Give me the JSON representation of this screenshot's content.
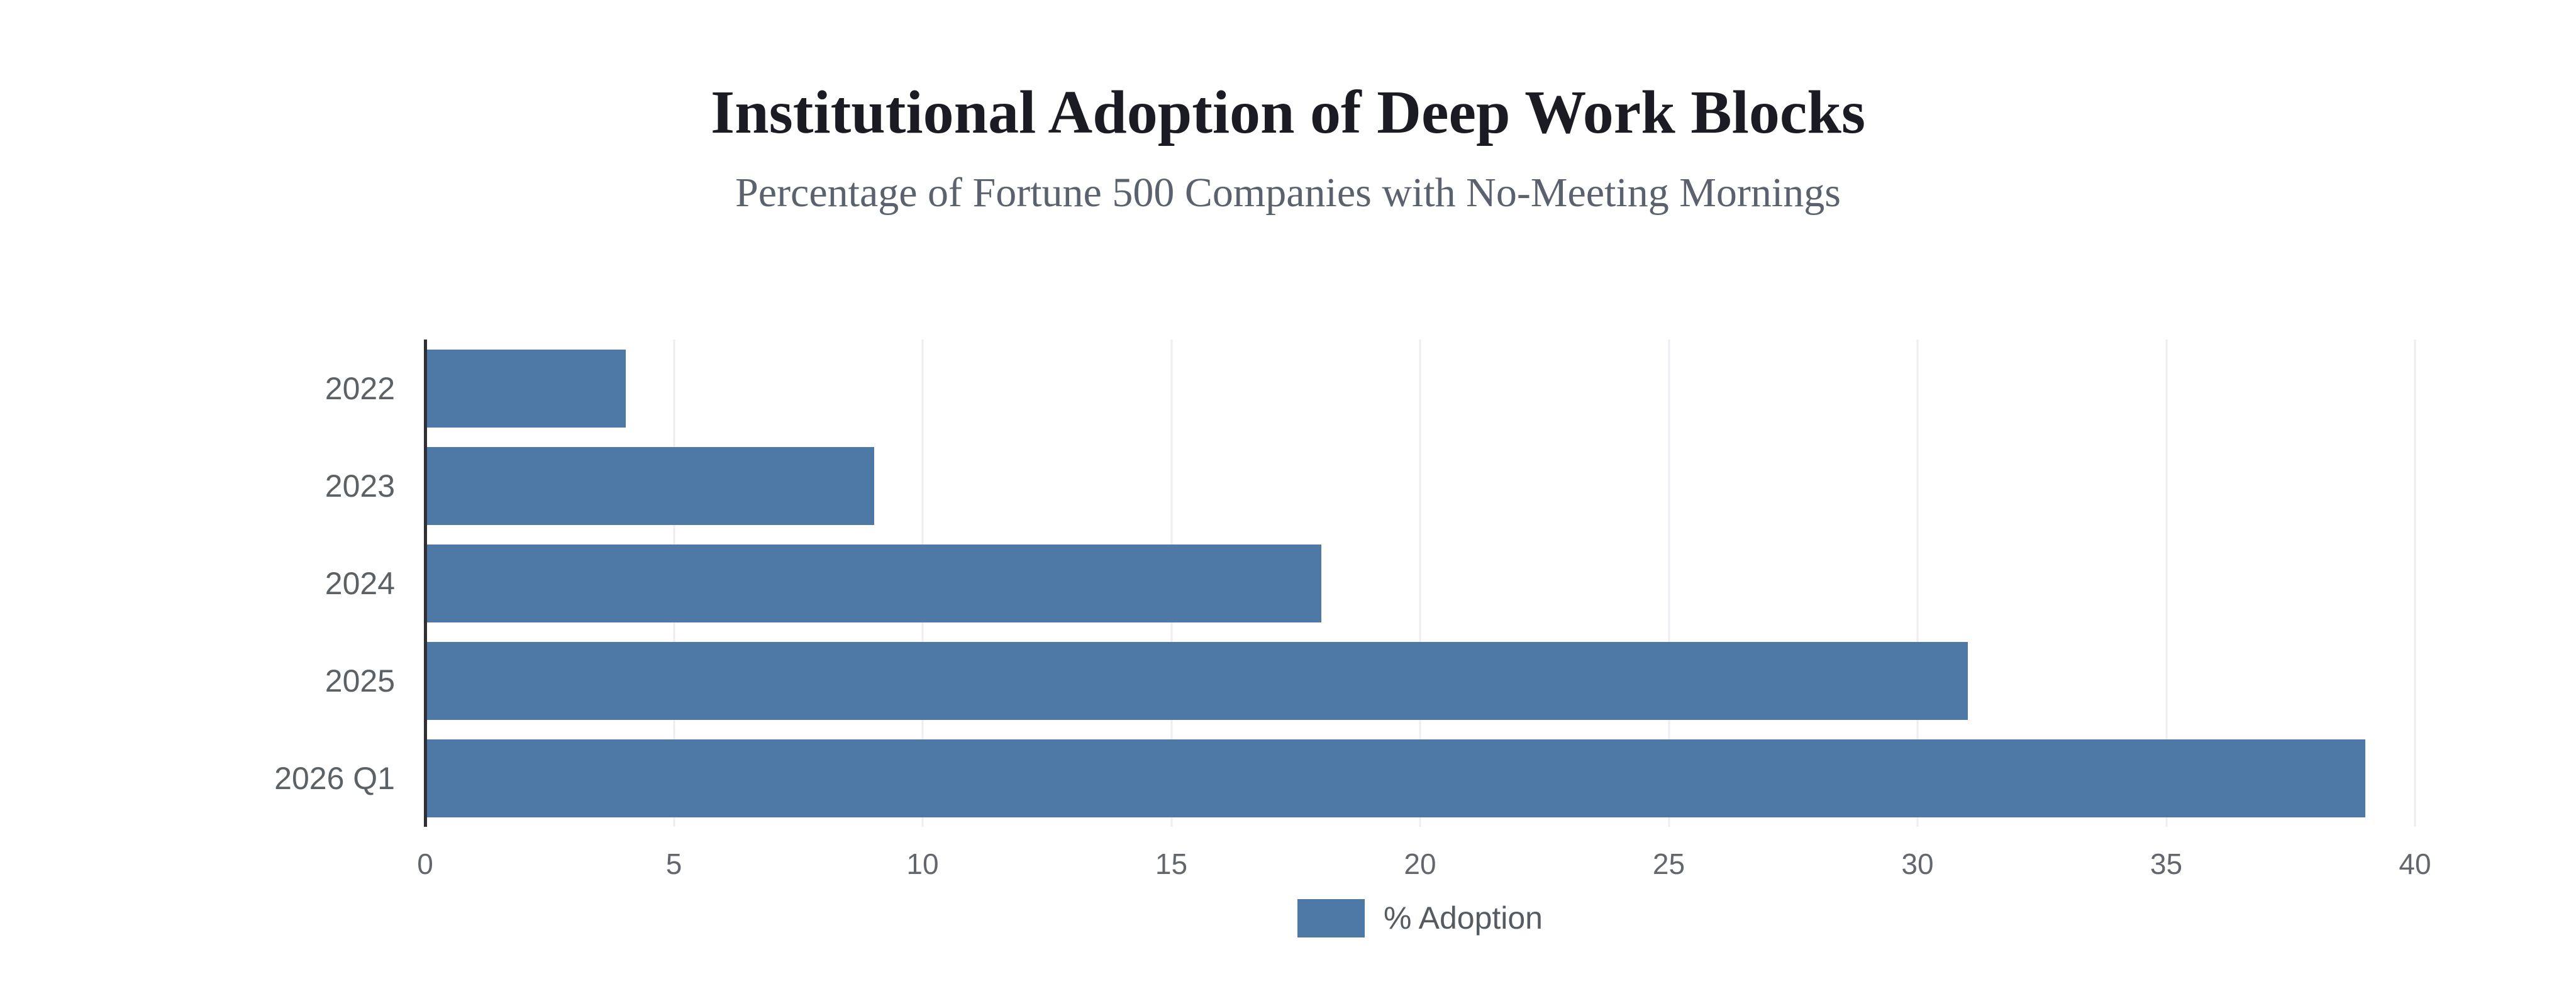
{
  "chart_data": {
    "type": "bar",
    "orientation": "horizontal",
    "title": "Institutional Adoption of Deep Work Blocks",
    "subtitle": "Percentage of Fortune 500 Companies with No-Meeting Mornings",
    "categories": [
      "2022",
      "2023",
      "2024",
      "2025",
      "2026 Q1"
    ],
    "values": [
      4,
      9,
      18,
      31,
      39
    ],
    "series_name": "% Adoption",
    "xlabel": "",
    "ylabel": "",
    "xlim": [
      0,
      40
    ],
    "x_ticks": [
      0,
      5,
      10,
      15,
      20,
      25,
      30,
      35,
      40
    ],
    "grid": "vertical-only",
    "legend_position": "bottom-center",
    "bar_color": "#4e79a7"
  },
  "legend": {
    "label": "% Adoption"
  },
  "colors": {
    "bar": "#4e79a7",
    "grid": "#eceef1",
    "axis": "#2e3033",
    "title": "#1b1b23",
    "subtitle": "#5b626e",
    "category_label": "#5c6166",
    "tick_label": "#63676d",
    "legend_label": "#565b61",
    "background": "#ffffff"
  }
}
